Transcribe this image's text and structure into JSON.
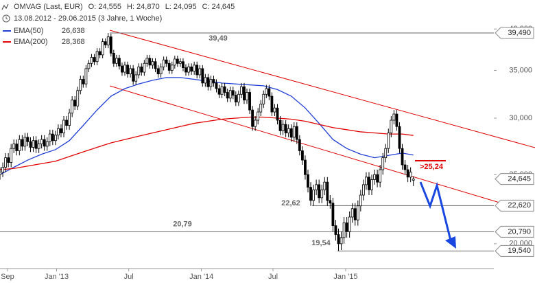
{
  "chart_data": {
    "type": "candlestick",
    "title": "OMVAG (Last, EUR)",
    "ohlc_text": [
      "O: 24,555",
      "H: 24,870",
      "L: 24,095",
      "C: 24,645"
    ],
    "period": "13.08.2012 - 29.06.2015 (3 Jahre, 1 Woche)",
    "up_color": "#ffffff",
    "down_color": "#000000",
    "open": [
      25000,
      25200,
      25600,
      26400,
      26000,
      27200,
      27600,
      27000,
      28000,
      27400,
      28200,
      27800,
      27300,
      27900,
      27200,
      27600,
      28000,
      27400,
      27800,
      28500,
      27900,
      28400,
      29000,
      28600,
      29800,
      29300,
      30500,
      31800,
      31200,
      32800,
      34000,
      33500,
      35200,
      35800,
      36500,
      36000,
      37200,
      36800,
      38400,
      38000,
      39000,
      37000,
      35800,
      36400,
      35500,
      34800,
      35600,
      34600,
      35200,
      33800,
      34500,
      35400,
      34800,
      35800,
      36400,
      35600,
      36000,
      35200,
      34600,
      35400,
      36200,
      35800,
      35000,
      35600,
      36300,
      35800,
      36000,
      35300,
      34800,
      35400,
      34900,
      35600,
      34500,
      35200,
      33600,
      34200,
      33200,
      34000,
      33600,
      33000,
      32400,
      33200,
      32600,
      32000,
      32800,
      32300,
      31600,
      32400,
      33200,
      31800,
      32600,
      30800,
      29200,
      29800,
      30600,
      31400,
      32400,
      33000,
      32200,
      30600,
      31000,
      29800,
      28800,
      29400,
      28600,
      29000,
      28200,
      29200,
      28000,
      27000,
      26200,
      25000,
      24000,
      23000,
      23800,
      24200,
      23200,
      23800,
      24400,
      23000,
      22800,
      21200,
      20600,
      20000,
      20400,
      21400,
      20800,
      21800,
      22400,
      21600,
      22600,
      23400,
      24200,
      24800,
      23800,
      24600,
      25000,
      24400,
      25400,
      26400,
      27200,
      28600,
      29800,
      30400,
      29200,
      27200,
      25800,
      25400,
      24800,
      24555
    ],
    "high": [
      25600,
      26000,
      26800,
      26800,
      27600,
      28000,
      28000,
      28400,
      28400,
      28600,
      28600,
      28200,
      28300,
      28300,
      28000,
      28400,
      28400,
      28200,
      28900,
      28900,
      28800,
      29400,
      29400,
      30200,
      30200,
      30900,
      32200,
      32200,
      33200,
      34400,
      34400,
      35600,
      36200,
      36900,
      36900,
      37600,
      37600,
      38800,
      38800,
      39490,
      39400,
      37400,
      36800,
      36800,
      35900,
      36000,
      36000,
      35600,
      35600,
      34900,
      35800,
      35800,
      36200,
      36800,
      36800,
      36400,
      36400,
      35600,
      35800,
      36600,
      36600,
      36200,
      36000,
      36700,
      36700,
      36400,
      36400,
      35700,
      35800,
      35800,
      36000,
      36000,
      35600,
      35600,
      34600,
      34600,
      34400,
      34400,
      34000,
      33400,
      33600,
      33600,
      33000,
      33200,
      33200,
      32700,
      32800,
      33600,
      33600,
      33000,
      33000,
      31200,
      30200,
      31000,
      31800,
      32800,
      33400,
      33400,
      32600,
      31400,
      31400,
      30200,
      29800,
      29800,
      29400,
      29400,
      29600,
      29600,
      28400,
      27400,
      26600,
      25400,
      24400,
      24200,
      24600,
      24600,
      24200,
      24800,
      24800,
      23400,
      23200,
      21600,
      21000,
      20800,
      21800,
      21800,
      22200,
      22800,
      22800,
      23000,
      23800,
      24600,
      25200,
      25200,
      25000,
      25400,
      25400,
      25800,
      26800,
      27600,
      29000,
      30200,
      30800,
      30800,
      29600,
      27600,
      26200,
      25800,
      25600,
      24870
    ],
    "low": [
      24600,
      24800,
      25200,
      25600,
      25600,
      26800,
      26600,
      26600,
      27000,
      27000,
      27400,
      26900,
      26900,
      26800,
      26800,
      27200,
      27000,
      27000,
      27400,
      27500,
      27500,
      28000,
      28200,
      28200,
      28900,
      28900,
      30100,
      30800,
      30800,
      32400,
      33100,
      33100,
      34800,
      35400,
      35600,
      35600,
      36400,
      36400,
      37600,
      37600,
      36600,
      35400,
      35400,
      35100,
      34400,
      34400,
      34200,
      34200,
      33400,
      33400,
      34100,
      34400,
      34400,
      35400,
      35200,
      35200,
      34800,
      34200,
      34200,
      35000,
      35400,
      34600,
      34600,
      35200,
      35400,
      35400,
      34900,
      34400,
      34400,
      34500,
      34500,
      34100,
      34100,
      33200,
      33200,
      32800,
      32800,
      33200,
      32600,
      32000,
      32000,
      32200,
      31600,
      31600,
      31900,
      31200,
      31200,
      32000,
      31400,
      31400,
      30400,
      28800,
      28800,
      29400,
      30200,
      31000,
      32000,
      31800,
      30200,
      30200,
      29400,
      28400,
      28400,
      28200,
      28200,
      27800,
      27800,
      27600,
      26600,
      25800,
      24600,
      23600,
      22600,
      22600,
      23400,
      22800,
      22800,
      23400,
      22600,
      22400,
      20800,
      20200,
      19540,
      19600,
      20000,
      20400,
      20400,
      21400,
      21200,
      21200,
      22200,
      23000,
      23800,
      23400,
      23400,
      24200,
      24000,
      24000,
      25000,
      26000,
      26800,
      28200,
      29400,
      28800,
      26800,
      25400,
      25000,
      24400,
      24400,
      24095
    ],
    "close": [
      25200,
      25600,
      26400,
      26000,
      27200,
      27600,
      27000,
      28000,
      27400,
      28200,
      27800,
      27300,
      27900,
      27200,
      27600,
      28000,
      27400,
      27800,
      28500,
      27900,
      28400,
      29000,
      28600,
      29800,
      29300,
      30500,
      31800,
      31200,
      32800,
      34000,
      33500,
      35200,
      35800,
      36500,
      36000,
      37200,
      36800,
      38400,
      38000,
      39000,
      37000,
      35800,
      36400,
      35500,
      34800,
      35600,
      34600,
      35200,
      33800,
      34500,
      35400,
      34800,
      35800,
      36400,
      35600,
      36000,
      35200,
      34600,
      35400,
      36200,
      35800,
      35000,
      35600,
      36300,
      35800,
      36000,
      35300,
      34800,
      35400,
      34900,
      35600,
      34500,
      35200,
      33600,
      34200,
      33200,
      34000,
      33600,
      33000,
      32400,
      33200,
      32600,
      32000,
      32800,
      32300,
      31600,
      32400,
      33200,
      31800,
      32600,
      30800,
      29200,
      29800,
      30600,
      31400,
      32400,
      33000,
      32200,
      30600,
      31000,
      29800,
      28800,
      29400,
      28600,
      29000,
      28200,
      29200,
      28000,
      27000,
      26200,
      25000,
      24000,
      23000,
      23800,
      24200,
      23200,
      23800,
      24400,
      23000,
      22800,
      21200,
      20600,
      20000,
      20400,
      21400,
      20800,
      21800,
      22400,
      21600,
      22600,
      23400,
      24200,
      24800,
      23800,
      24600,
      25000,
      24400,
      25400,
      26400,
      27200,
      28600,
      29800,
      30400,
      29200,
      27200,
      25800,
      25400,
      24800,
      25200,
      24645
    ],
    "last_price_label": "24,645",
    "series": [
      {
        "name": "EMA(50)",
        "color": "#1f3fd6",
        "value_label": "26,638",
        "x": [
          0,
          5,
          10,
          15,
          20,
          25,
          30,
          35,
          40,
          45,
          50,
          55,
          60,
          65,
          70,
          75,
          80,
          85,
          90,
          95,
          100,
          105,
          110,
          115,
          120,
          125,
          130,
          135,
          140,
          145,
          149
        ],
        "values": [
          25000,
          25600,
          26200,
          26700,
          27100,
          27900,
          29300,
          30800,
          32200,
          33000,
          33500,
          33900,
          34200,
          34200,
          34000,
          33800,
          33600,
          33500,
          33400,
          33300,
          32900,
          32200,
          31000,
          29500,
          28000,
          27200,
          26700,
          26400,
          26600,
          26800,
          26638
        ]
      },
      {
        "name": "EMA(200)",
        "color": "#e00000",
        "value_label": "28,368",
        "x": [
          0,
          5,
          10,
          15,
          20,
          25,
          30,
          35,
          40,
          45,
          50,
          55,
          60,
          65,
          70,
          75,
          80,
          85,
          90,
          95,
          100,
          105,
          110,
          115,
          120,
          125,
          130,
          135,
          140,
          145,
          149
        ],
        "values": [
          25400,
          25500,
          25700,
          25900,
          26100,
          26500,
          26900,
          27300,
          27700,
          28000,
          28300,
          28600,
          28900,
          29200,
          29500,
          29700,
          29900,
          30000,
          30100,
          30100,
          30000,
          29900,
          29700,
          29400,
          29100,
          28900,
          28700,
          28600,
          28500,
          28500,
          28368
        ]
      }
    ],
    "xlim": [
      0,
      178
    ],
    "xticks": [
      {
        "value": 2.7,
        "label": "Sep"
      },
      {
        "value": 20.4,
        "label": "Jan '13"
      },
      {
        "value": 46.4,
        "label": "Jul"
      },
      {
        "value": 72.6,
        "label": "Jan '14"
      },
      {
        "value": 98.4,
        "label": "Jul"
      },
      {
        "value": 124.6,
        "label": "Jan '15"
      }
    ],
    "ylim": [
      18500,
      41100
    ],
    "log_y": true,
    "yticks": [
      {
        "value": 20000,
        "label": "20,000"
      },
      {
        "value": 25000,
        "label": "25,000"
      },
      {
        "value": 30000,
        "label": "30,000"
      },
      {
        "value": 35000,
        "label": "35,000"
      },
      {
        "value": 40000,
        "label": "40,000"
      }
    ],
    "levels": [
      {
        "value": 39490,
        "label": "39,490",
        "short_label": "39,49"
      },
      {
        "value": 22620,
        "label": "22,620",
        "short_label": "22,62"
      },
      {
        "value": 20790,
        "label": "20,790",
        "short_label": "20,79"
      },
      {
        "value": 19540,
        "label": "19,540",
        "short_label": "19,54"
      }
    ],
    "target_label": ">25,24"
  }
}
